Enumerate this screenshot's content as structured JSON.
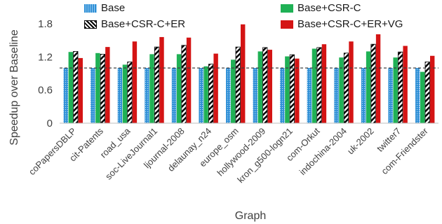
{
  "chart_data": {
    "type": "bar",
    "xlabel": "Graph",
    "ylabel": "Speedup over Baseline",
    "ylim": [
      0,
      1.8
    ],
    "yticks": [
      "0",
      "0.6",
      "1.2",
      "1.8"
    ],
    "reference_line": 1.0,
    "legend_position": "top",
    "categories": [
      "coPapersDBLP",
      "cit-Patents",
      "road_usa",
      "soc-LiveJournal1",
      "ljournal-2008",
      "delaunay_n24",
      "europe_osm",
      "hollywood-2009",
      "kron_g500-logn21",
      "com-Orkut",
      "indochina-2004",
      "uk-2002",
      "twitter7",
      "com-Friendster"
    ],
    "series": [
      {
        "name": "Base",
        "color": "#2e8fd6",
        "pattern": "dots",
        "values": [
          1.0,
          1.0,
          1.0,
          1.0,
          1.0,
          1.0,
          1.0,
          1.0,
          1.0,
          1.0,
          1.0,
          1.0,
          1.0,
          1.0
        ]
      },
      {
        "name": "Base+CSR-C",
        "color": "#1fb155",
        "pattern": "solid",
        "values": [
          1.29,
          1.27,
          1.06,
          1.25,
          1.25,
          1.03,
          1.15,
          1.3,
          1.21,
          1.35,
          1.19,
          1.3,
          1.19,
          0.93
        ]
      },
      {
        "name": "Base+CSR-C+ER",
        "color": "#000000",
        "pattern": "stripes",
        "values": [
          1.3,
          1.25,
          1.11,
          1.38,
          1.41,
          1.07,
          1.38,
          1.37,
          1.24,
          1.37,
          1.27,
          1.43,
          1.29,
          1.11
        ]
      },
      {
        "name": "Base+CSR-C+ER+VG",
        "color": "#d41414",
        "pattern": "solid",
        "values": [
          1.18,
          1.38,
          1.48,
          1.56,
          1.55,
          1.26,
          1.79,
          1.33,
          1.17,
          1.43,
          1.48,
          1.61,
          1.4,
          1.22
        ]
      }
    ]
  }
}
